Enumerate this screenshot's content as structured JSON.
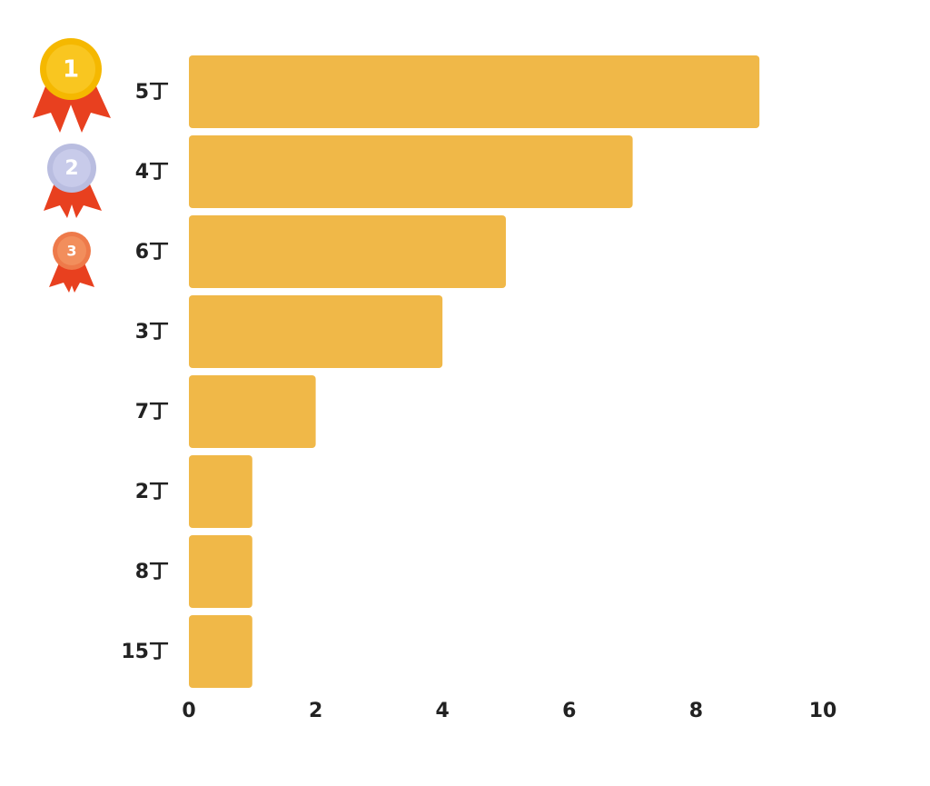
{
  "chart_data": {
    "type": "bar",
    "orientation": "horizontal",
    "categories": [
      "5丁",
      "4丁",
      "6丁",
      "3丁",
      "7丁",
      "2丁",
      "8丁",
      "15丁"
    ],
    "values": [
      9,
      7,
      5,
      4,
      2,
      1,
      1,
      1
    ],
    "color": "#f0b848",
    "xlim": [
      0,
      10
    ],
    "xticks": [
      0,
      2,
      4,
      6,
      8,
      10
    ],
    "medal_labels": [
      "1",
      "2",
      "3"
    ]
  }
}
